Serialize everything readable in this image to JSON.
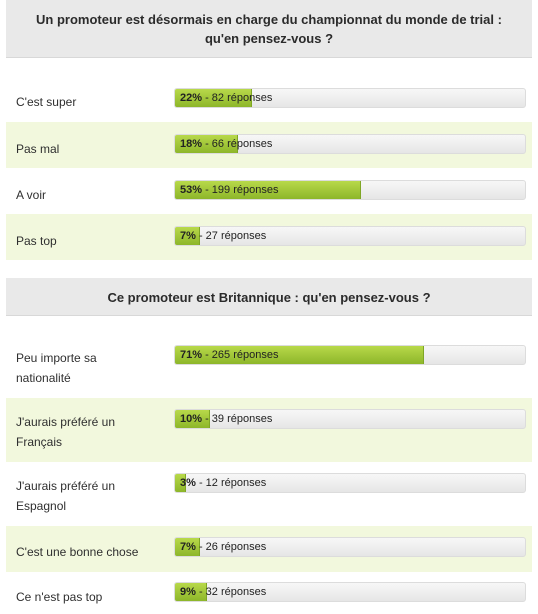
{
  "polls": [
    {
      "question_line1": "Un promoteur est désormais en charge du championnat du monde de trial :",
      "question_line2": "qu'en pensez-vous ?",
      "options": [
        {
          "label": "C'est super",
          "percent": "22%",
          "responses": " - 82 réponses",
          "fill": 0.22
        },
        {
          "label": "Pas mal",
          "percent": "18%",
          "responses": " - 66 réponses",
          "fill": 0.18
        },
        {
          "label": "A voir",
          "percent": "53%",
          "responses": " - 199 réponses",
          "fill": 0.53
        },
        {
          "label": "Pas top",
          "percent": "7%",
          "responses": " - 27 réponses",
          "fill": 0.07
        }
      ]
    },
    {
      "question_line1": "Ce promoteur est Britannique : qu'en pensez-vous ?",
      "options": [
        {
          "label": "Peu importe sa nationalité",
          "percent": "71%",
          "responses": " - 265 réponses",
          "fill": 0.71
        },
        {
          "label": "J'aurais préféré un Français",
          "percent": "10%",
          "responses": " - 39 réponses",
          "fill": 0.1
        },
        {
          "label": "J'aurais préféré un Espagnol",
          "percent": "3%",
          "responses": " - 12 réponses",
          "fill": 0.03
        },
        {
          "label": "C'est une bonne chose",
          "percent": "7%",
          "responses": " - 26 réponses",
          "fill": 0.07
        },
        {
          "label": "Ce n'est pas top",
          "percent": "9%",
          "responses": " - 32 réponses",
          "fill": 0.09
        }
      ]
    }
  ],
  "colors": {
    "header_bg": "#e9e9e9",
    "alt_row_bg": "#f2f8dd",
    "bar_fill": "#9cc334",
    "bar_track": "#eeeeee"
  }
}
